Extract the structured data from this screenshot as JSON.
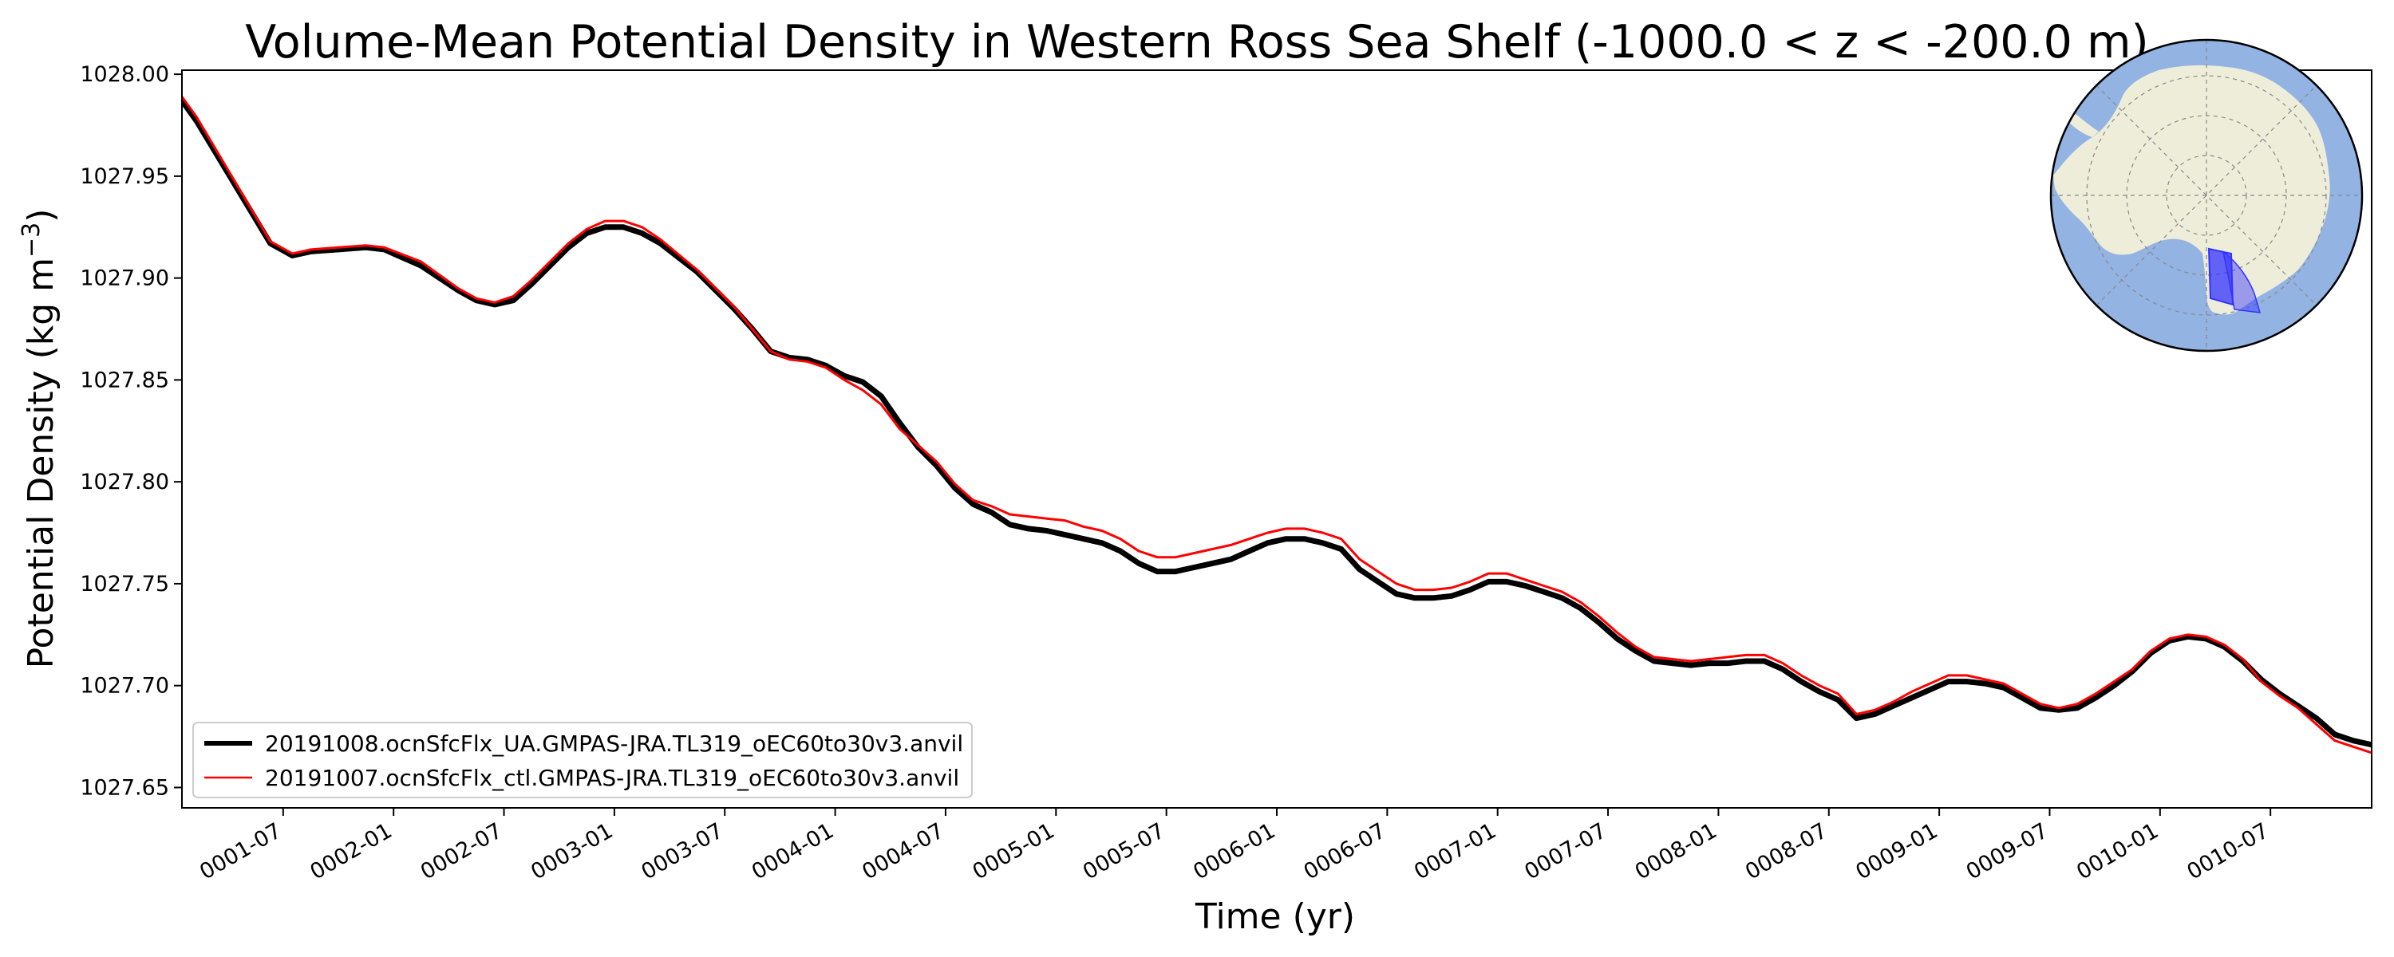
{
  "chart_data": {
    "type": "line",
    "title": "Volume-Mean Potential Density in Western Ross Sea Shelf (-1000.0 < z < -200.0 m)",
    "xlabel": "Time (yr)",
    "ylabel_main": "Potential Density (kg m",
    "ylabel_sup": "−3",
    "ylabel_close": ")",
    "xlim": [
      0,
      119
    ],
    "ylim": [
      1027.64,
      1028.002
    ],
    "x_ticks": [
      {
        "x": 5.5,
        "label": "0001-07"
      },
      {
        "x": 11.5,
        "label": "0002-01"
      },
      {
        "x": 17.5,
        "label": "0002-07"
      },
      {
        "x": 23.5,
        "label": "0003-01"
      },
      {
        "x": 29.5,
        "label": "0003-07"
      },
      {
        "x": 35.5,
        "label": "0004-01"
      },
      {
        "x": 41.5,
        "label": "0004-07"
      },
      {
        "x": 47.5,
        "label": "0005-01"
      },
      {
        "x": 53.5,
        "label": "0005-07"
      },
      {
        "x": 59.5,
        "label": "0006-01"
      },
      {
        "x": 65.5,
        "label": "0006-07"
      },
      {
        "x": 71.5,
        "label": "0007-01"
      },
      {
        "x": 77.5,
        "label": "0007-07"
      },
      {
        "x": 83.5,
        "label": "0008-01"
      },
      {
        "x": 89.5,
        "label": "0008-07"
      },
      {
        "x": 95.5,
        "label": "0009-01"
      },
      {
        "x": 101.5,
        "label": "0009-07"
      },
      {
        "x": 107.5,
        "label": "0010-01"
      },
      {
        "x": 113.5,
        "label": "0010-07"
      }
    ],
    "y_ticks": [
      {
        "y": 1027.65,
        "label": "1027.65"
      },
      {
        "y": 1027.7,
        "label": "1027.70"
      },
      {
        "y": 1027.75,
        "label": "1027.75"
      },
      {
        "y": 1027.8,
        "label": "1027.80"
      },
      {
        "y": 1027.85,
        "label": "1027.85"
      },
      {
        "y": 1027.9,
        "label": "1027.90"
      },
      {
        "y": 1027.95,
        "label": "1027.95"
      },
      {
        "y": 1028.0,
        "label": "1028.00"
      }
    ],
    "grid": false,
    "legend_position": "bottom-left",
    "series": [
      {
        "name": "20191008.ocnSfcFlx_UA.GMPAS-JRA.TL319_oEC60to30v3.anvil",
        "color": "#000000",
        "points": [
          [
            0,
            1027.987
          ],
          [
            0.8,
            1027.977
          ],
          [
            4.8,
            1027.917
          ],
          [
            6,
            1027.911
          ],
          [
            7,
            1027.913
          ],
          [
            8.5,
            1027.914
          ],
          [
            10,
            1027.915
          ],
          [
            11,
            1027.914
          ],
          [
            13,
            1027.906
          ],
          [
            15,
            1027.894
          ],
          [
            16,
            1027.889
          ],
          [
            17,
            1027.887
          ],
          [
            18,
            1027.889
          ],
          [
            19,
            1027.897
          ],
          [
            21,
            1027.915
          ],
          [
            22,
            1027.922
          ],
          [
            23,
            1027.925
          ],
          [
            24,
            1027.925
          ],
          [
            25,
            1027.922
          ],
          [
            26,
            1027.917
          ],
          [
            28,
            1027.903
          ],
          [
            30,
            1027.885
          ],
          [
            31,
            1027.875
          ],
          [
            32,
            1027.864
          ],
          [
            33,
            1027.861
          ],
          [
            34,
            1027.86
          ],
          [
            35,
            1027.857
          ],
          [
            36,
            1027.852
          ],
          [
            37,
            1027.849
          ],
          [
            38,
            1027.842
          ],
          [
            39,
            1027.829
          ],
          [
            40,
            1027.817
          ],
          [
            41,
            1027.808
          ],
          [
            42,
            1027.797
          ],
          [
            43,
            1027.789
          ],
          [
            44,
            1027.785
          ],
          [
            45,
            1027.779
          ],
          [
            46,
            1027.777
          ],
          [
            47,
            1027.776
          ],
          [
            48,
            1027.774
          ],
          [
            49,
            1027.772
          ],
          [
            50,
            1027.77
          ],
          [
            51,
            1027.766
          ],
          [
            52,
            1027.76
          ],
          [
            53,
            1027.756
          ],
          [
            54,
            1027.756
          ],
          [
            55,
            1027.758
          ],
          [
            56,
            1027.76
          ],
          [
            57,
            1027.762
          ],
          [
            58,
            1027.766
          ],
          [
            59,
            1027.77
          ],
          [
            60,
            1027.772
          ],
          [
            61,
            1027.772
          ],
          [
            62,
            1027.77
          ],
          [
            63,
            1027.767
          ],
          [
            64,
            1027.757
          ],
          [
            65,
            1027.751
          ],
          [
            66,
            1027.745
          ],
          [
            67,
            1027.743
          ],
          [
            68,
            1027.743
          ],
          [
            69,
            1027.744
          ],
          [
            70,
            1027.747
          ],
          [
            71,
            1027.751
          ],
          [
            72,
            1027.751
          ],
          [
            73,
            1027.749
          ],
          [
            74,
            1027.746
          ],
          [
            75,
            1027.743
          ],
          [
            76,
            1027.738
          ],
          [
            77,
            1027.731
          ],
          [
            78,
            1027.723
          ],
          [
            79,
            1027.717
          ],
          [
            80,
            1027.712
          ],
          [
            81,
            1027.711
          ],
          [
            82,
            1027.71
          ],
          [
            83,
            1027.711
          ],
          [
            84,
            1027.711
          ],
          [
            85,
            1027.712
          ],
          [
            86,
            1027.712
          ],
          [
            87,
            1027.708
          ],
          [
            88,
            1027.702
          ],
          [
            89,
            1027.697
          ],
          [
            90,
            1027.693
          ],
          [
            91,
            1027.684
          ],
          [
            92,
            1027.686
          ],
          [
            93,
            1027.69
          ],
          [
            94,
            1027.694
          ],
          [
            95,
            1027.698
          ],
          [
            96,
            1027.702
          ],
          [
            97,
            1027.702
          ],
          [
            98,
            1027.701
          ],
          [
            99,
            1027.699
          ],
          [
            100,
            1027.694
          ],
          [
            101,
            1027.689
          ],
          [
            102,
            1027.688
          ],
          [
            103,
            1027.689
          ],
          [
            104,
            1027.694
          ],
          [
            105,
            1027.7
          ],
          [
            106,
            1027.707
          ],
          [
            107,
            1027.716
          ],
          [
            108,
            1027.722
          ],
          [
            109,
            1027.724
          ],
          [
            110,
            1027.723
          ],
          [
            111,
            1027.719
          ],
          [
            112,
            1027.712
          ],
          [
            113,
            1027.703
          ],
          [
            114,
            1027.696
          ],
          [
            115,
            1027.69
          ],
          [
            116,
            1027.684
          ],
          [
            117,
            1027.676
          ],
          [
            118,
            1027.673
          ],
          [
            119,
            1027.671
          ],
          [
            120,
            1027.668
          ],
          [
            121,
            1027.662
          ],
          [
            122,
            1027.659
          ]
        ]
      },
      {
        "name": "20191007.ocnSfcFlx_ctl.GMPAS-JRA.TL319_oEC60to30v3.anvil",
        "color": "#ff0000",
        "points": [
          [
            0,
            1027.989
          ],
          [
            0.8,
            1027.979
          ],
          [
            4.8,
            1027.918
          ],
          [
            6,
            1027.912
          ],
          [
            7,
            1027.914
          ],
          [
            8.5,
            1027.915
          ],
          [
            10,
            1027.916
          ],
          [
            11,
            1027.915
          ],
          [
            13,
            1027.908
          ],
          [
            15,
            1027.895
          ],
          [
            16,
            1027.89
          ],
          [
            17,
            1027.888
          ],
          [
            18,
            1027.891
          ],
          [
            19,
            1027.899
          ],
          [
            21,
            1027.917
          ],
          [
            22,
            1027.924
          ],
          [
            23,
            1027.928
          ],
          [
            24,
            1027.928
          ],
          [
            25,
            1027.925
          ],
          [
            26,
            1027.919
          ],
          [
            28,
            1027.904
          ],
          [
            30,
            1027.886
          ],
          [
            31,
            1027.875
          ],
          [
            32,
            1027.864
          ],
          [
            33,
            1027.86
          ],
          [
            34,
            1027.859
          ],
          [
            35,
            1027.856
          ],
          [
            36,
            1027.85
          ],
          [
            37,
            1027.845
          ],
          [
            38,
            1027.838
          ],
          [
            39,
            1027.826
          ],
          [
            40,
            1027.818
          ],
          [
            41,
            1027.81
          ],
          [
            42,
            1027.799
          ],
          [
            43,
            1027.791
          ],
          [
            44,
            1027.788
          ],
          [
            45,
            1027.784
          ],
          [
            46,
            1027.783
          ],
          [
            47,
            1027.782
          ],
          [
            48,
            1027.781
          ],
          [
            49,
            1027.778
          ],
          [
            50,
            1027.776
          ],
          [
            51,
            1027.772
          ],
          [
            52,
            1027.766
          ],
          [
            53,
            1027.763
          ],
          [
            54,
            1027.763
          ],
          [
            55,
            1027.765
          ],
          [
            56,
            1027.767
          ],
          [
            57,
            1027.769
          ],
          [
            58,
            1027.772
          ],
          [
            59,
            1027.775
          ],
          [
            60,
            1027.777
          ],
          [
            61,
            1027.777
          ],
          [
            62,
            1027.775
          ],
          [
            63,
            1027.772
          ],
          [
            64,
            1027.762
          ],
          [
            65,
            1027.756
          ],
          [
            66,
            1027.75
          ],
          [
            67,
            1027.747
          ],
          [
            68,
            1027.747
          ],
          [
            69,
            1027.748
          ],
          [
            70,
            1027.751
          ],
          [
            71,
            1027.755
          ],
          [
            72,
            1027.755
          ],
          [
            73,
            1027.752
          ],
          [
            74,
            1027.749
          ],
          [
            75,
            1027.746
          ],
          [
            76,
            1027.741
          ],
          [
            77,
            1027.734
          ],
          [
            78,
            1027.726
          ],
          [
            79,
            1027.719
          ],
          [
            80,
            1027.714
          ],
          [
            81,
            1027.713
          ],
          [
            82,
            1027.712
          ],
          [
            83,
            1027.713
          ],
          [
            84,
            1027.714
          ],
          [
            85,
            1027.715
          ],
          [
            86,
            1027.715
          ],
          [
            87,
            1027.711
          ],
          [
            88,
            1027.705
          ],
          [
            89,
            1027.7
          ],
          [
            90,
            1027.696
          ],
          [
            91,
            1027.686
          ],
          [
            92,
            1027.688
          ],
          [
            93,
            1027.692
          ],
          [
            94,
            1027.697
          ],
          [
            95,
            1027.701
          ],
          [
            96,
            1027.705
          ],
          [
            97,
            1027.705
          ],
          [
            98,
            1027.703
          ],
          [
            99,
            1027.701
          ],
          [
            100,
            1027.696
          ],
          [
            101,
            1027.691
          ],
          [
            102,
            1027.689
          ],
          [
            103,
            1027.691
          ],
          [
            104,
            1027.696
          ],
          [
            105,
            1027.702
          ],
          [
            106,
            1027.708
          ],
          [
            107,
            1027.717
          ],
          [
            108,
            1027.723
          ],
          [
            109,
            1027.725
          ],
          [
            110,
            1027.724
          ],
          [
            111,
            1027.72
          ],
          [
            112,
            1027.713
          ],
          [
            113,
            1027.702
          ],
          [
            114,
            1027.695
          ],
          [
            115,
            1027.689
          ],
          [
            116,
            1027.681
          ],
          [
            117,
            1027.673
          ],
          [
            118,
            1027.67
          ],
          [
            119,
            1027.667
          ],
          [
            120,
            1027.664
          ],
          [
            121,
            1027.658
          ],
          [
            122,
            1027.655
          ]
        ]
      }
    ],
    "inset_map": {
      "ocean_color": "#93b3e3",
      "land_color": "#eeedd9",
      "region_color": "#3333ff"
    }
  }
}
